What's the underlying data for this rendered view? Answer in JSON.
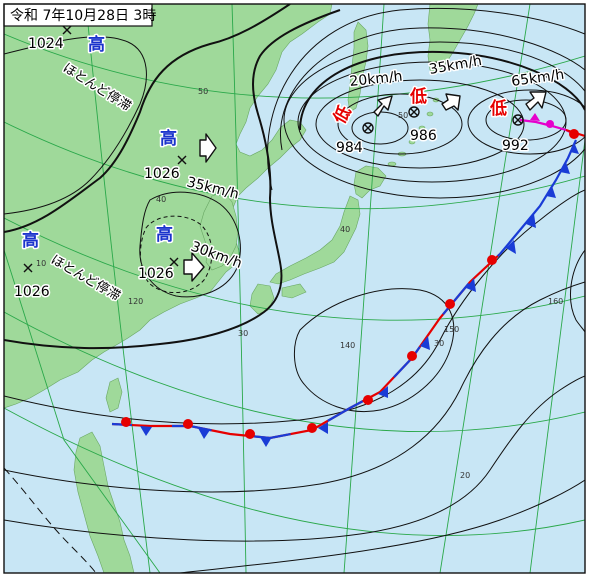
{
  "header": {
    "title": "令和 7年10月28日 3時"
  },
  "highs": [
    {
      "symbol": "高",
      "pressure": "1024",
      "motion": "ほとんど停滞"
    },
    {
      "symbol": "高",
      "pressure": "1026",
      "motion": "35km/h"
    },
    {
      "symbol": "高",
      "pressure": "1026",
      "motion": "ほとんど停滞"
    },
    {
      "symbol": "高",
      "pressure": "1026",
      "motion": "30km/h"
    }
  ],
  "lows": [
    {
      "symbol": "低",
      "pressure": "984",
      "motion": "20km/h"
    },
    {
      "symbol": "低",
      "pressure": "986",
      "motion": "35km/h"
    },
    {
      "symbol": "低",
      "pressure": "992",
      "motion": "65km/h"
    }
  ],
  "grid_labels": {
    "lat50": "50",
    "lat40": "40",
    "lat30": "30",
    "lat20": "20",
    "lat10": "10",
    "lon120": "120",
    "lon140": "140",
    "lon150": "150",
    "lon160": "160",
    "lat50_b": "50",
    "lat40_b": "40",
    "lat30_b": "30"
  },
  "colors": {
    "sea": "#c8e6f5",
    "land": "#9fd99a",
    "grid": "#2aa84a",
    "high": "#1a33cc",
    "low": "#e60000",
    "warm_front": "#e60000",
    "cold_front": "#1a3cd6",
    "occluded_front": "#e600cc"
  }
}
